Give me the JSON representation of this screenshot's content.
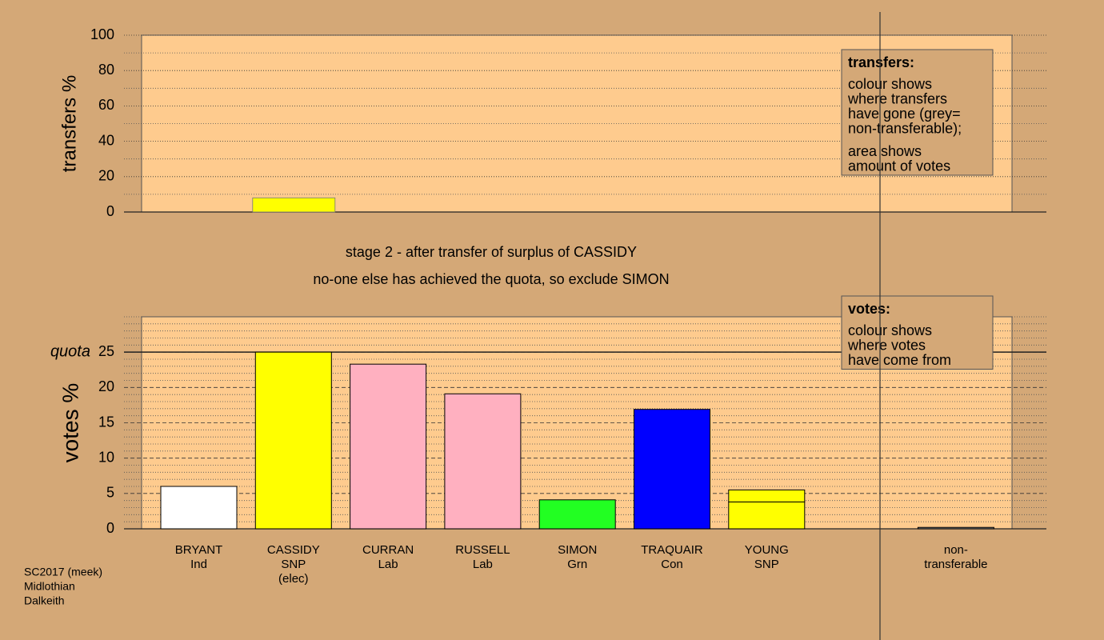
{
  "page": {
    "stage_lines": [
      "stage 2 - after transfer of surplus of CASSIDY",
      "no-one else has achieved the quota, so exclude SIMON"
    ],
    "footer": [
      "SC2017 (meek)",
      "Midlothian",
      "Dalkeith"
    ]
  },
  "chart_data": [
    {
      "type": "bar",
      "ylabel": "transfers %",
      "ylim": [
        0,
        100
      ],
      "yticks": [
        0,
        20,
        40,
        60,
        80,
        100
      ],
      "minor_grid": [
        10,
        30,
        50,
        70,
        90
      ],
      "color": "#ffff00",
      "values": [
        0,
        8,
        0,
        0,
        0,
        0,
        0,
        0,
        0
      ],
      "legend_box": {
        "title": "transfers:",
        "groups": [
          [
            "colour shows",
            "where transfers",
            "have gone (grey=",
            "non-transferable);"
          ],
          [
            "area shows",
            "amount of votes"
          ]
        ]
      }
    },
    {
      "type": "stacked_bar",
      "ylabel": "votes %",
      "ylim": [
        0,
        30
      ],
      "yticks": [
        0,
        5,
        10,
        15,
        20,
        25
      ],
      "minor_grid": [
        1,
        2,
        3,
        4,
        6,
        7,
        8,
        9,
        11,
        12,
        13,
        14,
        16,
        17,
        18,
        19,
        21,
        22,
        23,
        24,
        26,
        27,
        28,
        29,
        30
      ],
      "quota": 25,
      "quota_label": "quota",
      "categories": [
        [
          "BRYANT",
          "Ind"
        ],
        [
          "CASSIDY",
          "SNP",
          "(elec)"
        ],
        [
          "CURRAN",
          "Lab"
        ],
        [
          "RUSSELL",
          "Lab"
        ],
        [
          "SIMON",
          "Grn"
        ],
        [
          "TRAQUAIR",
          "Con"
        ],
        [
          "YOUNG",
          "SNP"
        ],
        null,
        [
          "non-",
          "transferable"
        ]
      ],
      "series": [
        {
          "colors": [
            "#ffffff",
            "#ffff00",
            "#ffb0c0",
            "#ffb0c0",
            "#22ff22",
            "#0000ff",
            "#ffff00",
            "#ffff00",
            "#808080"
          ],
          "values": [
            6.0,
            25,
            23.3,
            19.1,
            4.1,
            16.9,
            3.8,
            0,
            0
          ]
        },
        {
          "colors": [
            "#ffff00",
            "#ffff00",
            "#ffff00",
            "#ffff00",
            "#ffff00",
            "#ffff00",
            "#ffff00",
            "#ffff00",
            "#808080"
          ],
          "values": [
            0,
            0,
            0,
            0,
            0,
            0,
            1.7,
            0,
            0.2
          ]
        }
      ],
      "legend_box": {
        "title": "votes:",
        "groups": [
          [
            "colour shows",
            "where votes",
            "have come from"
          ]
        ]
      }
    }
  ]
}
